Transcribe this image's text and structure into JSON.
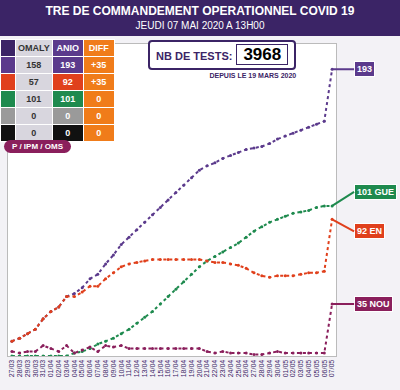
{
  "header": {
    "title": "TRE DE COMMANDEMENT OPERATIONNEL COVID 19",
    "subtitle": "JEUDI 07 MAI 2020 A 13H00"
  },
  "tests": {
    "label": "NB DE TESTS:",
    "value": 3968,
    "note": "DEPUIS LE 19 MARS 2020"
  },
  "table": {
    "columns": [
      "OMALY",
      "ANIO",
      "DIFF"
    ],
    "rows": [
      [
        "158",
        "193",
        "+35"
      ],
      [
        "57",
        "92",
        "+35"
      ],
      [
        "101",
        "101",
        "0"
      ],
      [
        "0",
        "0",
        "0"
      ],
      [
        "0",
        "0",
        "0"
      ]
    ]
  },
  "source": "P / IPM / OMS",
  "chart_data": {
    "type": "line",
    "categories": [
      "27/03",
      "28/03",
      "29/03",
      "30/03",
      "31/03",
      "01/04",
      "02/04",
      "03/04",
      "04/04",
      "05/04",
      "06/04",
      "07/04",
      "08/04",
      "09/04",
      "10/04",
      "11/04",
      "12/04",
      "13/04",
      "14/04",
      "15/04",
      "16/04",
      "17/04",
      "18/04",
      "19/04",
      "20/04",
      "21/04",
      "22/04",
      "23/04",
      "24/04",
      "25/04",
      "26/04",
      "27/04",
      "28/04",
      "29/04",
      "30/04",
      "01/05",
      "02/05",
      "03/05",
      "04/05",
      "05/05",
      "06/05",
      "07/05"
    ],
    "series": [
      {
        "color": "#5b3a8c",
        "values": [
          10,
          12,
          15,
          18,
          25,
          30,
          33,
          40,
          42,
          46,
          52,
          55,
          62,
          68,
          75,
          80,
          85,
          90,
          95,
          100,
          105,
          110,
          115,
          120,
          125,
          128,
          130,
          133,
          135,
          137,
          139,
          140,
          141,
          143,
          146,
          148,
          150,
          152,
          154,
          156,
          158,
          193
        ]
      },
      {
        "name": "GUE",
        "color": "#1e8a4e",
        "values": [
          0,
          0,
          0,
          0,
          0,
          0,
          0,
          0,
          2,
          3,
          5,
          8,
          10,
          12,
          15,
          18,
          22,
          26,
          30,
          35,
          40,
          45,
          50,
          55,
          60,
          64,
          67,
          70,
          73,
          76,
          80,
          84,
          87,
          90,
          92,
          94,
          96,
          97,
          98,
          100,
          101,
          101
        ]
      },
      {
        "name": "EN",
        "color": "#e0401c",
        "values": [
          10,
          12,
          15,
          18,
          25,
          30,
          33,
          40,
          40,
          43,
          47,
          47,
          52,
          56,
          60,
          62,
          63,
          64,
          65,
          65,
          65,
          65,
          65,
          65,
          65,
          64,
          63,
          63,
          62,
          61,
          59,
          56,
          54,
          53,
          54,
          54,
          54,
          55,
          56,
          56,
          57,
          92
        ]
      },
      {
        "name": "NOU",
        "color": "#8a1f5c",
        "values": [
          3,
          2,
          3,
          3,
          7,
          5,
          3,
          7,
          2,
          4,
          6,
          3,
          7,
          6,
          7,
          5,
          5,
          5,
          5,
          5,
          5,
          5,
          5,
          5,
          5,
          3,
          2,
          3,
          2,
          2,
          2,
          1,
          1,
          2,
          3,
          2,
          2,
          2,
          2,
          2,
          2,
          35
        ]
      }
    ],
    "ylim": [
      0,
      210
    ],
    "yticks": [],
    "grid": false,
    "tick_labels": "x",
    "marker": "circle",
    "line_style": "dotted"
  }
}
